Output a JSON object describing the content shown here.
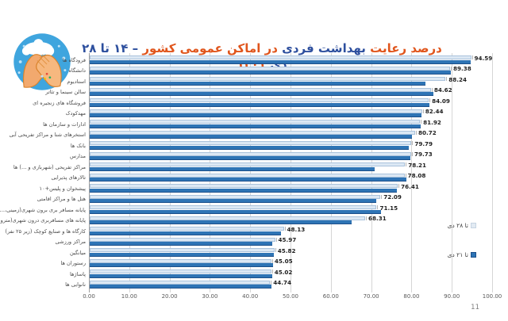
{
  "page": {
    "page_number": "11",
    "background": "#ffffff"
  },
  "title": {
    "segments": [
      {
        "text": "درصد رعایت ",
        "color": "#e0551c"
      },
      {
        "text": "بهداشت فردی ",
        "color": "#2d4f9e"
      },
      {
        "text": "در اماکن عمومی کشور ",
        "color": "#e0551c"
      },
      {
        "text": "– ۱۴ تا ۲۸ دی ",
        "color": "#2d4f9e"
      },
      {
        "text": "۱۴۰۱",
        "color": "#e0551c"
      }
    ]
  },
  "icon": {
    "name": "handwash-icon",
    "circle_color": "#3fa5de"
  },
  "chart_data": {
    "type": "bar",
    "orientation": "horizontal",
    "title": "درصد رعایت بهداشت فردی در اماکن عمومی کشور – ۱۴ تا ۲۸ دی ۱۴۰۱",
    "categories": [
      "فرودگاه ها",
      "دانشگاه",
      "استادیوم",
      "سالن سینما و تئاتر",
      "فروشگاه های زنجیره ای",
      "مهدکودک",
      "ادارات و سازمان ها",
      "استخرهای شنا و مراکز تفریحی آبی",
      "بانک ها",
      "مدارس",
      "مراکز تفریحی (شهربازی و ...) ها",
      "تالارهای پذیرایی",
      "پیشخوان و پلیس+۱۰",
      "هتل ها و مراکز اقامتی",
      "پایانه مسافر بری برون شهری(زمینی،...",
      "پایانه های مسافربری درون شهری(مترو...",
      "کارگاه ها و صنایع کوچک (زیر ۲۵ نفر)",
      "مراکز ورزشی",
      "میانگین",
      "رستوران ها",
      "پاساژها",
      "نانوایی ها"
    ],
    "series": [
      {
        "name": "تا ۲۸ دی",
        "color": "#dce8f4",
        "border_color": "#aac2db",
        "data_labels": true,
        "values": [
          94.59,
          89.38,
          88.24,
          84.62,
          84.09,
          82.44,
          81.92,
          80.72,
          79.79,
          79.73,
          78.21,
          78.08,
          76.41,
          72.09,
          71.15,
          68.31,
          48.13,
          45.97,
          45.82,
          45.05,
          45.02,
          44.74
        ]
      },
      {
        "name": "تا ۲۱ دی",
        "color": "#2e74b5",
        "border_color": "#1c4f8a",
        "data_labels": false,
        "values": [
          94.4,
          89.5,
          83.2,
          85.2,
          84.3,
          82.2,
          82.0,
          80.0,
          79.2,
          79.5,
          70.7,
          78.5,
          76.2,
          71.0,
          72.3,
          65.0,
          47.5,
          45.2,
          45.6,
          45.5,
          45.3,
          45.1
        ]
      }
    ],
    "xlim": [
      0,
      100
    ],
    "x_ticks": [
      "0.00",
      "10.00",
      "20.00",
      "30.00",
      "40.00",
      "50.00",
      "60.00",
      "70.00",
      "80.00",
      "90.00",
      "100.00"
    ],
    "grid": true,
    "legend_position": "right-inside"
  }
}
